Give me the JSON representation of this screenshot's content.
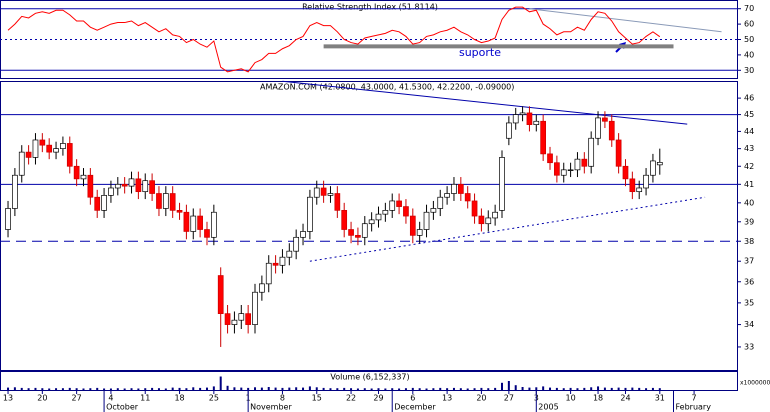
{
  "chart_data": [
    {
      "type": "line",
      "title": "Relative Strength Index (51.8114)",
      "annotation": "suporte",
      "color": "#ff0000",
      "values": [
        56,
        60,
        65,
        64,
        67,
        68,
        67,
        69,
        69,
        66,
        62,
        62,
        58,
        56,
        58,
        60,
        61,
        61,
        62,
        59,
        61,
        58,
        55,
        57,
        53,
        52,
        48,
        50,
        47,
        45,
        49,
        32,
        29,
        30,
        31,
        29,
        35,
        37,
        41,
        41,
        44,
        46,
        50,
        52,
        59,
        61,
        59,
        59,
        55,
        50,
        48,
        47,
        51,
        52,
        53,
        54,
        56,
        55,
        52,
        47,
        48,
        52,
        53,
        55,
        56,
        58,
        55,
        53,
        50,
        48,
        49,
        51,
        63,
        69,
        71,
        71,
        68,
        69,
        60,
        57,
        53,
        55,
        55,
        58,
        56,
        63,
        68,
        67,
        62,
        55,
        51,
        47,
        48,
        52,
        55,
        51.8114
      ],
      "xlim": [
        -1.17,
        106.4
      ],
      "ylim": [
        25,
        75
      ],
      "yticks": [
        30,
        40,
        50,
        60,
        70
      ],
      "hlines": [
        {
          "value": 70,
          "style": "solid"
        },
        {
          "value": 50,
          "style": "dotted"
        },
        {
          "value": 30,
          "style": "solid"
        }
      ],
      "trendlines": [
        {
          "x": [
            46,
            97
          ],
          "y": [
            45.5,
            45.5
          ],
          "color": "#808080",
          "style": "thick"
        },
        {
          "x": [
            76,
            104
          ],
          "y": [
            70,
            55
          ],
          "color": "#8a9ab8",
          "style": "solid"
        }
      ]
    },
    {
      "type": "candlestick",
      "title": "AMAZON.COM (42.0800, 43.0000, 41.5300, 42.2200, -0.09000)",
      "up_color": "#ffffff",
      "down_color": "#ff0000",
      "log": true,
      "open": [
        38.6,
        39.7,
        41.5,
        42.8,
        42.5,
        43.5,
        43.2,
        42.8,
        43.0,
        43.3,
        42.0,
        41.3,
        41.5,
        40.3,
        39.6,
        40.4,
        40.8,
        41.0,
        40.9,
        41.3,
        40.6,
        41.2,
        40.5,
        39.7,
        40.5,
        39.6,
        39.5,
        38.5,
        39.3,
        38.6,
        38.2,
        36.3,
        34.5,
        34.0,
        34.2,
        34.5,
        34.0,
        35.5,
        35.9,
        36.9,
        36.8,
        37.2,
        37.5,
        38.2,
        38.5,
        40.3,
        40.8,
        40.4,
        40.5,
        39.6,
        38.6,
        38.3,
        38.2,
        38.9,
        39.1,
        39.4,
        39.6,
        40.1,
        39.8,
        39.3,
        38.3,
        38.6,
        39.5,
        39.7,
        40.3,
        40.5,
        41.0,
        40.5,
        40.1,
        39.3,
        38.9,
        39.2,
        39.6,
        43.6,
        44.5,
        45.0,
        45.1,
        44.4,
        44.6,
        42.7,
        42.2,
        41.5,
        41.8,
        41.8,
        42.4,
        42.0,
        43.6,
        44.8,
        44.6,
        43.5,
        42.0,
        41.3,
        40.6,
        40.8,
        41.5,
        42.08
      ],
      "high": [
        40.1,
        41.9,
        43.2,
        43.2,
        43.9,
        43.9,
        43.6,
        43.4,
        43.7,
        43.7,
        42.4,
        41.9,
        41.9,
        40.7,
        40.8,
        41.2,
        41.4,
        41.4,
        41.7,
        41.7,
        41.6,
        41.6,
        40.9,
        40.9,
        40.9,
        40.0,
        39.9,
        39.7,
        39.7,
        39.0,
        39.9,
        36.7,
        34.9,
        34.6,
        34.9,
        34.9,
        35.9,
        36.3,
        37.3,
        37.3,
        37.6,
        37.9,
        38.6,
        38.9,
        40.7,
        41.2,
        41.2,
        40.9,
        40.9,
        40.0,
        39.0,
        38.7,
        39.3,
        39.5,
        39.8,
        40.0,
        40.5,
        40.5,
        40.2,
        39.7,
        39.0,
        39.9,
        40.1,
        40.7,
        40.9,
        41.4,
        41.4,
        40.9,
        40.5,
        39.7,
        39.6,
        39.9,
        42.9,
        44.9,
        45.4,
        45.5,
        45.5,
        45.0,
        45.0,
        43.1,
        42.6,
        42.2,
        42.2,
        42.8,
        42.8,
        44.0,
        45.2,
        45.2,
        45.0,
        43.9,
        42.4,
        41.7,
        41.2,
        41.9,
        42.7,
        43.0
      ],
      "low": [
        38.2,
        39.3,
        41.1,
        42.1,
        42.1,
        42.8,
        42.4,
        42.4,
        42.6,
        41.6,
        40.9,
        40.9,
        39.9,
        39.2,
        39.2,
        40.0,
        40.4,
        40.5,
        40.5,
        40.2,
        40.2,
        40.1,
        39.3,
        39.3,
        39.2,
        39.1,
        38.1,
        38.1,
        38.2,
        37.8,
        37.8,
        33.0,
        33.6,
        33.6,
        33.8,
        33.6,
        33.6,
        35.1,
        35.5,
        36.4,
        36.4,
        36.8,
        37.1,
        37.8,
        38.1,
        39.9,
        40.0,
        40.0,
        39.2,
        38.2,
        37.9,
        37.8,
        37.8,
        38.5,
        38.7,
        39.0,
        39.2,
        39.4,
        38.9,
        37.9,
        37.9,
        38.2,
        39.1,
        39.3,
        39.9,
        40.1,
        40.1,
        39.7,
        38.9,
        38.5,
        38.5,
        38.8,
        39.2,
        43.2,
        44.1,
        44.6,
        44.0,
        44.0,
        42.3,
        41.8,
        41.1,
        41.1,
        41.4,
        41.4,
        41.6,
        41.6,
        43.2,
        44.2,
        43.1,
        41.6,
        40.9,
        40.2,
        40.2,
        40.4,
        41.1,
        41.53
      ],
      "close": [
        39.7,
        41.5,
        42.8,
        42.5,
        43.5,
        43.2,
        42.8,
        43.0,
        43.3,
        42.0,
        41.3,
        41.5,
        40.3,
        39.6,
        40.4,
        40.8,
        41.0,
        40.9,
        41.3,
        40.6,
        41.2,
        40.5,
        39.7,
        40.5,
        39.6,
        39.5,
        38.5,
        39.3,
        38.6,
        38.2,
        39.5,
        34.5,
        34.0,
        34.2,
        34.5,
        34.0,
        35.5,
        35.9,
        36.9,
        36.8,
        37.2,
        37.5,
        38.2,
        38.5,
        40.3,
        40.8,
        40.4,
        40.5,
        39.6,
        38.6,
        38.3,
        38.2,
        38.9,
        39.1,
        39.4,
        39.6,
        40.1,
        39.8,
        39.3,
        38.3,
        38.6,
        39.5,
        39.7,
        40.3,
        40.5,
        41.0,
        40.5,
        40.1,
        39.3,
        38.9,
        39.2,
        39.5,
        42.5,
        44.5,
        45.0,
        45.1,
        44.4,
        44.6,
        42.7,
        42.2,
        41.5,
        41.8,
        41.8,
        42.4,
        42.0,
        43.6,
        44.8,
        44.6,
        43.5,
        42.0,
        41.3,
        40.6,
        40.8,
        41.5,
        42.3,
        42.22
      ],
      "xlim": [
        -1.17,
        106.4
      ],
      "ylim": [
        32,
        47
      ],
      "yticks": [
        33,
        34,
        35,
        36,
        37,
        38,
        39,
        40,
        41,
        42,
        43,
        44,
        45,
        46
      ],
      "hlines": [
        {
          "value": 45,
          "style": "solid"
        },
        {
          "value": 41,
          "style": "solid"
        },
        {
          "value": 38,
          "style": "dashed"
        }
      ],
      "trendlines": [
        {
          "x": [
            40,
            99
          ],
          "y": [
            47.05,
            44.43
          ],
          "color": "#0000aa",
          "style": "solid"
        },
        {
          "x": [
            44,
            101.6
          ],
          "y": [
            37.0,
            40.3
          ],
          "color": "#0000aa",
          "style": "dotted"
        }
      ]
    },
    {
      "type": "bar",
      "title": "Volume (6,152,337)",
      "unit_label": "x1000000",
      "color": "#000080",
      "values": [
        8,
        9,
        7,
        6,
        7,
        6,
        5,
        6,
        6,
        7,
        6,
        5,
        6,
        7,
        5,
        5,
        6,
        5,
        6,
        5,
        6,
        7,
        6,
        5,
        8,
        7,
        6,
        9,
        7,
        8,
        12,
        45,
        14,
        9,
        8,
        7,
        9,
        8,
        10,
        8,
        7,
        8,
        9,
        8,
        12,
        9,
        7,
        6,
        6,
        7,
        6,
        5,
        6,
        5,
        6,
        5,
        6,
        5,
        6,
        7,
        6,
        5,
        6,
        7,
        6,
        7,
        6,
        5,
        6,
        7,
        6,
        7,
        24,
        30,
        16,
        10,
        8,
        9,
        12,
        8,
        7,
        6,
        7,
        6,
        7,
        9,
        12,
        8,
        7,
        8,
        7,
        8,
        7,
        6,
        7,
        6.152337
      ],
      "xlim": [
        -1.17,
        106.4
      ],
      "ylim": [
        0,
        60
      ],
      "xticks": [
        {
          "value": 0,
          "label": "13"
        },
        {
          "value": 5,
          "label": "20"
        },
        {
          "value": 10,
          "label": "27"
        },
        {
          "value": 15,
          "label": "4"
        },
        {
          "value": 20,
          "label": "11"
        },
        {
          "value": 25,
          "label": "18"
        },
        {
          "value": 30,
          "label": "25"
        },
        {
          "value": 35,
          "label": "1"
        },
        {
          "value": 40,
          "label": "8"
        },
        {
          "value": 45,
          "label": "15"
        },
        {
          "value": 50,
          "label": "22"
        },
        {
          "value": 54,
          "label": "29"
        },
        {
          "value": 59,
          "label": "6"
        },
        {
          "value": 64,
          "label": "13"
        },
        {
          "value": 69,
          "label": "20"
        },
        {
          "value": 73,
          "label": "27"
        },
        {
          "value": 77,
          "label": "3"
        },
        {
          "value": 82,
          "label": "10"
        },
        {
          "value": 86,
          "label": "18"
        },
        {
          "value": 90,
          "label": "24"
        },
        {
          "value": 95,
          "label": "31"
        },
        {
          "value": 100,
          "label": "7"
        }
      ],
      "month_ticks": [
        {
          "value": 14,
          "label": "October"
        },
        {
          "value": 35,
          "label": "November"
        },
        {
          "value": 56,
          "label": "December"
        },
        {
          "value": 77,
          "label": "2005"
        },
        {
          "value": 97,
          "label": "February"
        }
      ]
    }
  ]
}
